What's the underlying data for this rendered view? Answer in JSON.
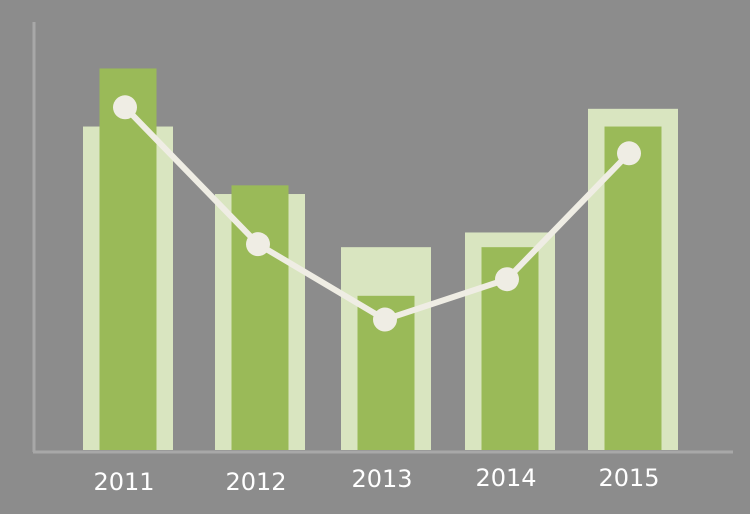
{
  "chart_data": {
    "type": "bar",
    "title": "",
    "xlabel": "",
    "ylabel": "",
    "categories": [
      "2011",
      "2012",
      "2013",
      "2014",
      "2015"
    ],
    "ylim": [
      0,
      100
    ],
    "grid": false,
    "series": [
      {
        "kind": "bar-outer",
        "values": [
          85.8,
          67.9,
          53.8,
          57.7,
          90.5
        ],
        "color": "#d9e5c0"
      },
      {
        "kind": "bar-inner",
        "values": [
          101.2,
          70.2,
          40.9,
          53.8,
          85.8
        ],
        "color": "#9aba58"
      },
      {
        "kind": "line",
        "values": [
          90.9,
          54.6,
          34.6,
          45.3,
          78.7
        ],
        "color": "#efede4"
      }
    ]
  },
  "colors": {
    "background": "#8c8c8c",
    "axis": "#a8a8a8",
    "tick_text": "#ffffff"
  }
}
